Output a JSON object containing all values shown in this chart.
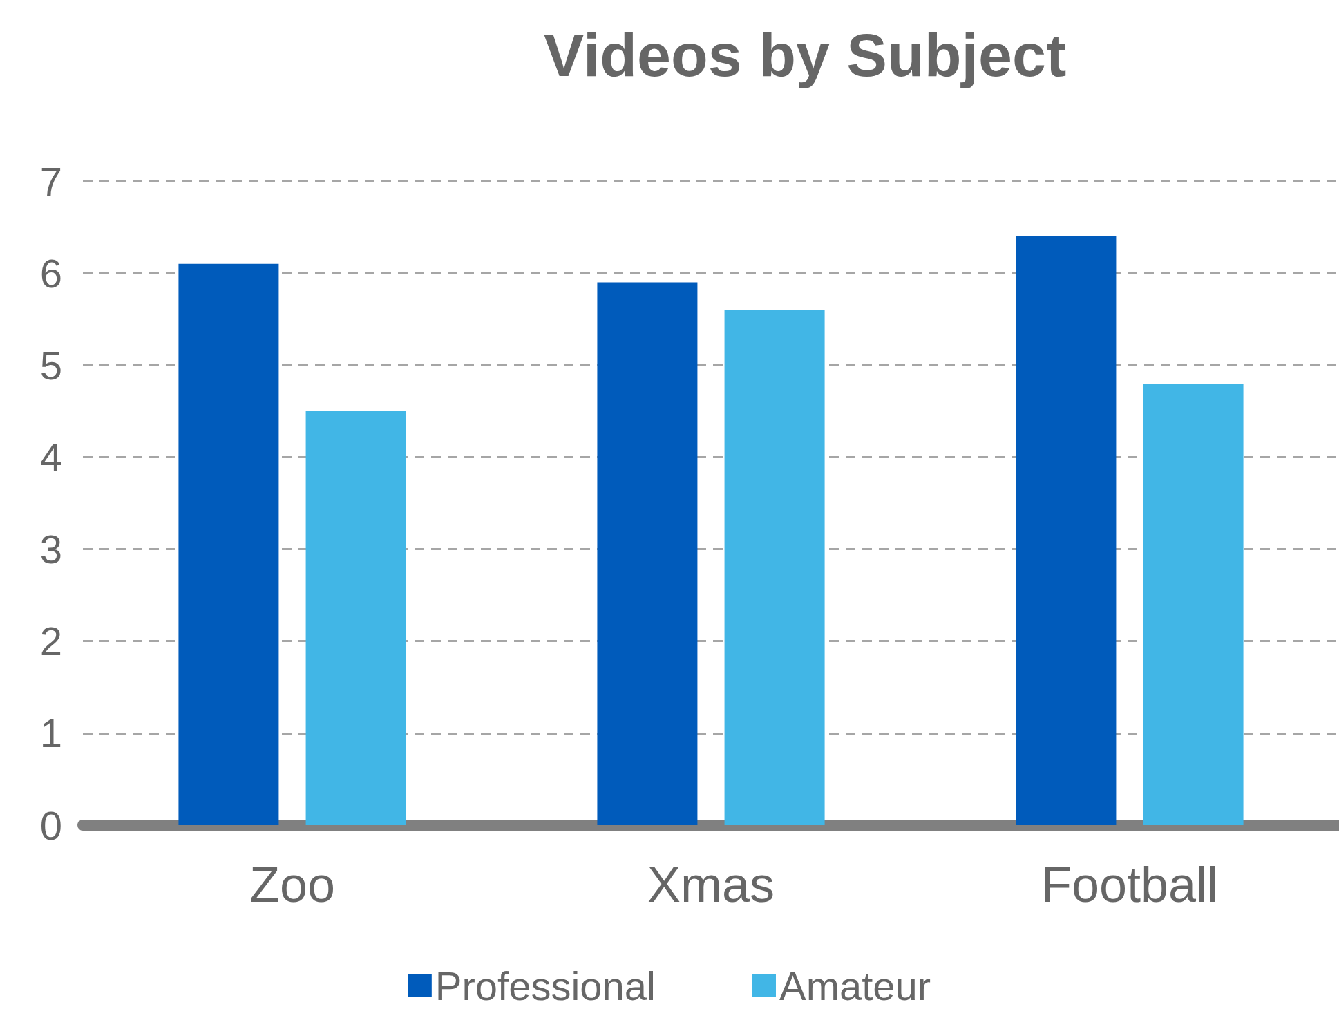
{
  "chart_data": {
    "type": "bar",
    "title": "Videos by Subject",
    "categories": [
      "Zoo",
      "Xmas",
      "Football"
    ],
    "series": [
      {
        "name": "Professional",
        "color": "#005bbb",
        "values": [
          6.1,
          5.9,
          6.4
        ]
      },
      {
        "name": "Amateur",
        "color": "#41b6e6",
        "values": [
          4.5,
          5.6,
          4.8
        ]
      }
    ],
    "ylim": [
      0,
      7
    ],
    "yticks": [
      0,
      1,
      2,
      3,
      4,
      5,
      6,
      7
    ],
    "grid": "y",
    "legend": "bottom"
  }
}
